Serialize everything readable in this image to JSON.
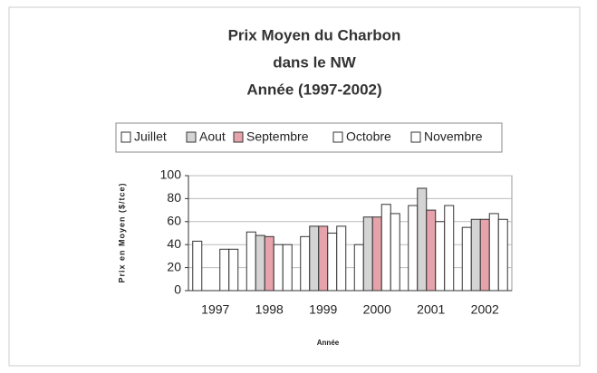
{
  "chart_data": {
    "type": "bar",
    "title": [
      "Prix Moyen du Charbon",
      "dans le NW",
      "Année (1997-2002)"
    ],
    "x_label": "Année",
    "y_label": "Prix en Moyen ($/tce)",
    "categories": [
      "1997",
      "1998",
      "1999",
      "2000",
      "2001",
      "2002"
    ],
    "series": [
      {
        "name": "Juillet",
        "color": "#ffffff",
        "values": [
          43,
          51,
          47,
          40,
          74,
          55
        ]
      },
      {
        "name": "Aout",
        "color": "#d4d4d4",
        "values": [
          null,
          48,
          56,
          64,
          89,
          62
        ]
      },
      {
        "name": "Septembre",
        "color": "#e6a3ab",
        "values": [
          null,
          47,
          56,
          64,
          70,
          62
        ]
      },
      {
        "name": "Octobre",
        "color": "#ffffff",
        "values": [
          36,
          40,
          50,
          75,
          60,
          67
        ]
      },
      {
        "name": "Novembre",
        "color": "#ffffff",
        "values": [
          36,
          40,
          56,
          67,
          74,
          62
        ]
      }
    ],
    "ylim": [
      0,
      100
    ],
    "yticks": [
      0,
      20,
      40,
      60,
      80,
      100
    ],
    "grid": true
  }
}
